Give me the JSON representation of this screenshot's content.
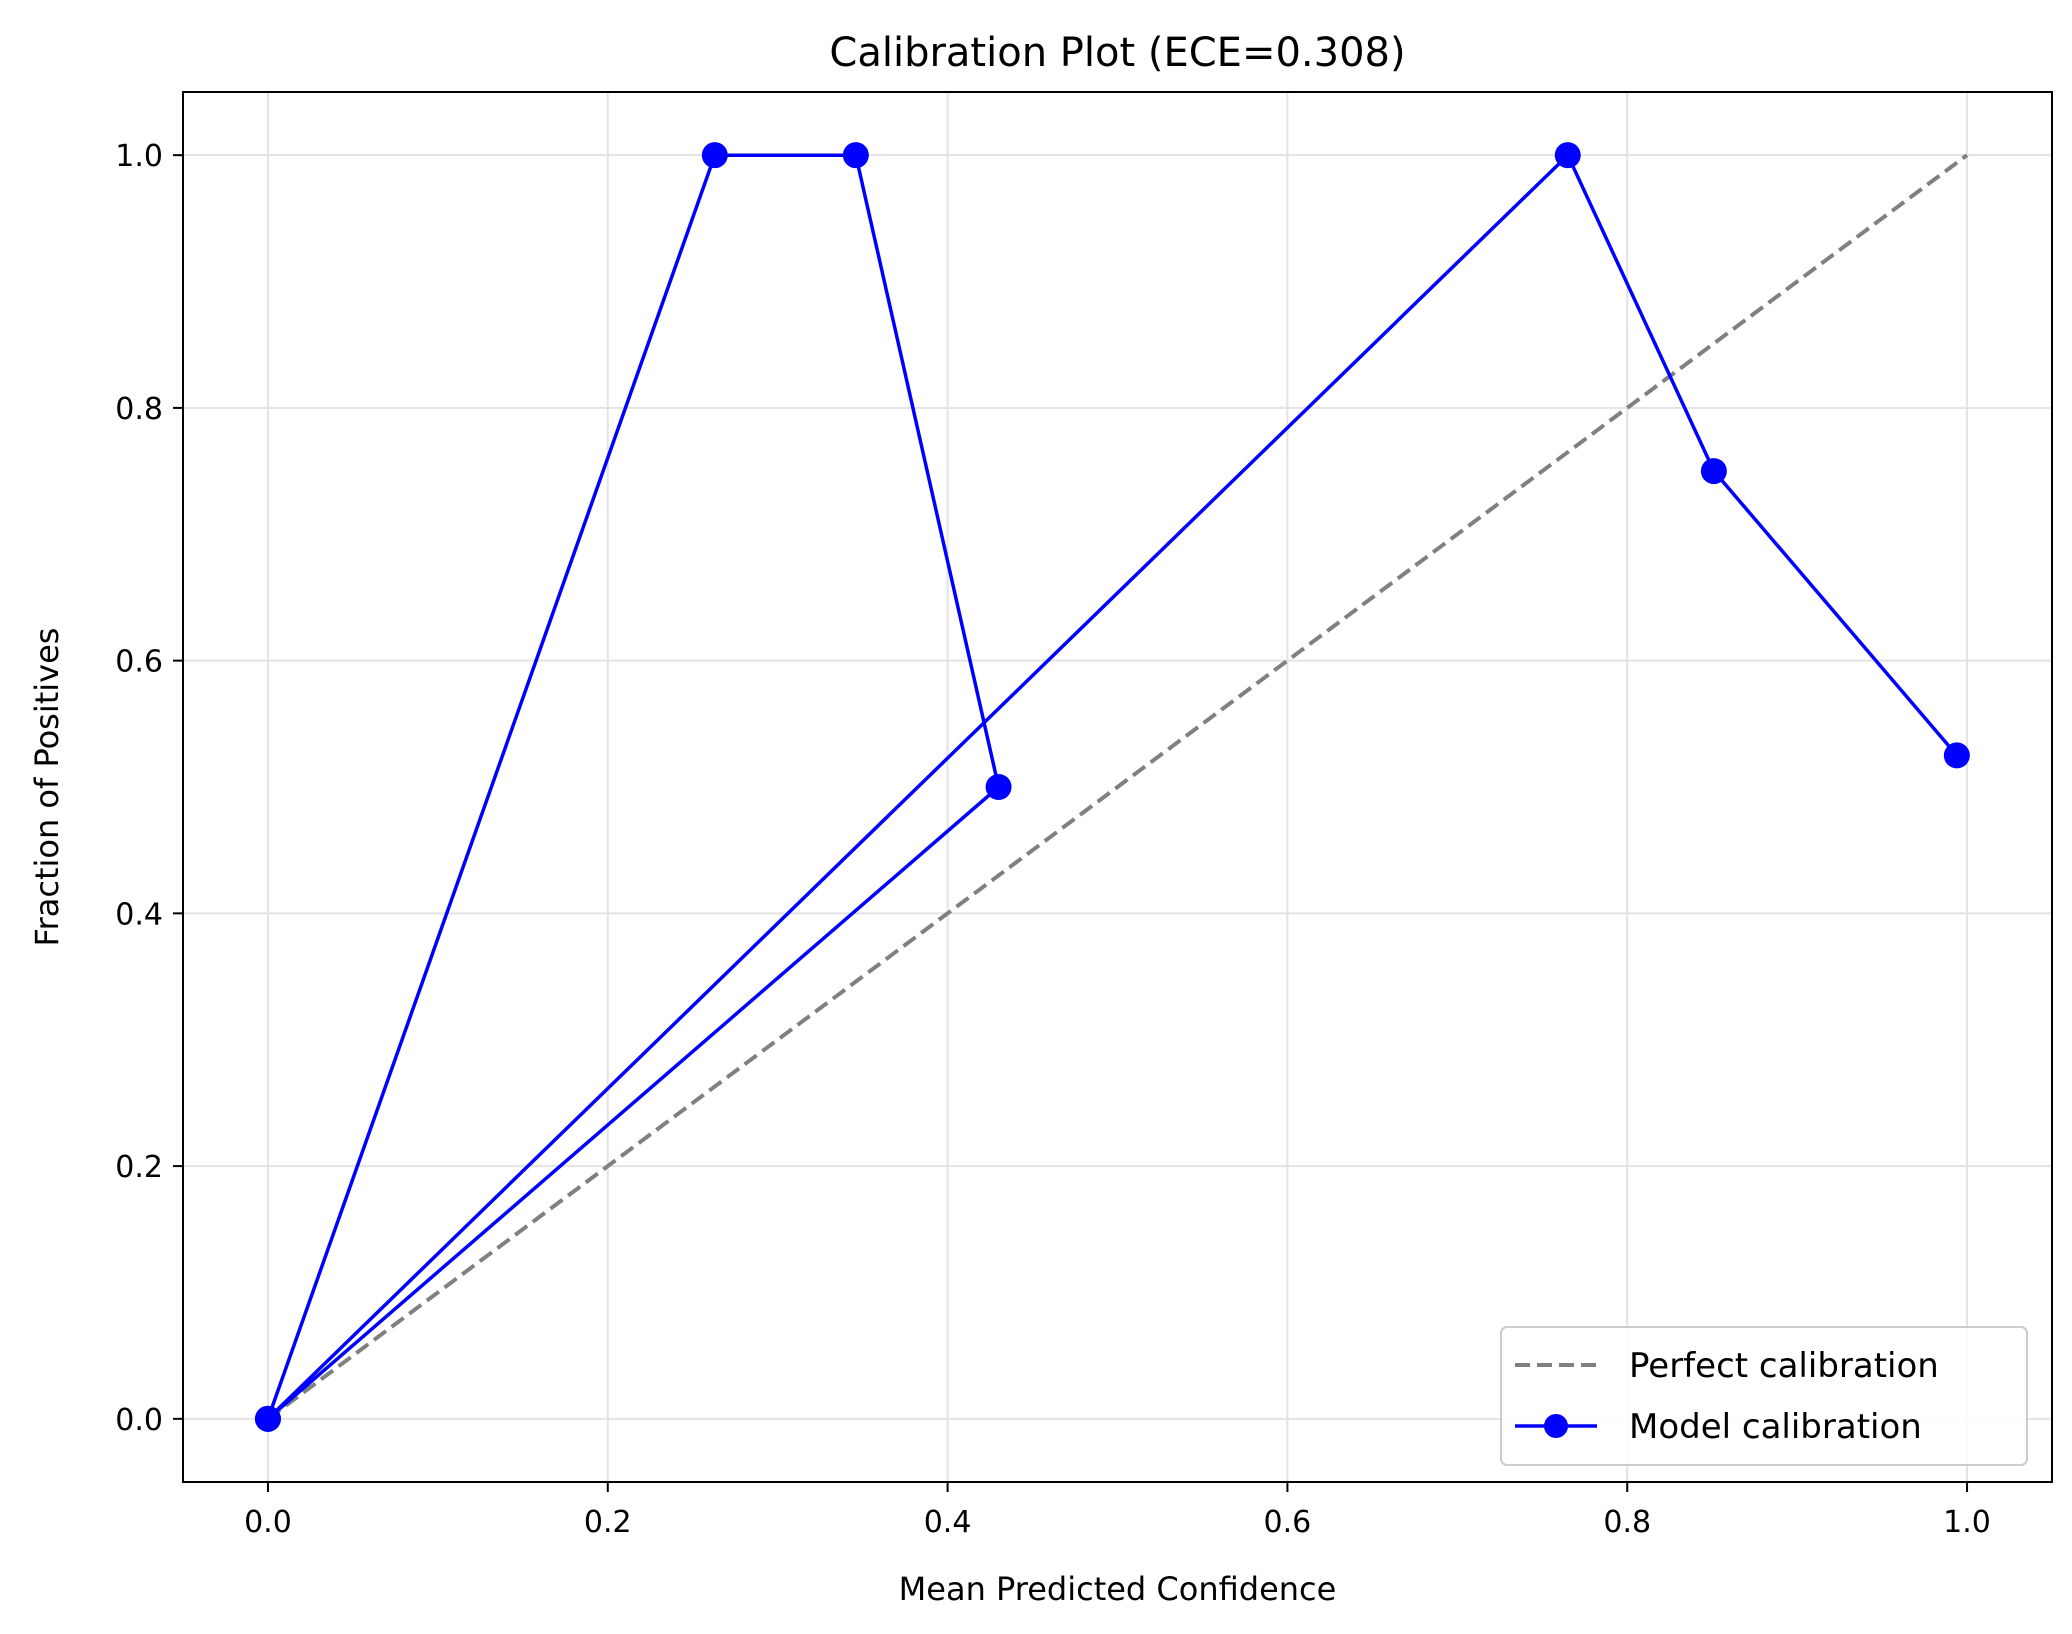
{
  "chart_data": {
    "type": "line",
    "title": "Calibration Plot (ECE=0.308)",
    "xlabel": "Mean Predicted Confidence",
    "ylabel": "Fraction of Positives",
    "xlim": [
      -0.05,
      1.05
    ],
    "ylim": [
      -0.05,
      1.05
    ],
    "xticks": [
      0.0,
      0.2,
      0.4,
      0.6,
      0.8,
      1.0
    ],
    "xtick_labels": [
      "0.0",
      "0.2",
      "0.4",
      "0.6",
      "0.8",
      "1.0"
    ],
    "yticks": [
      0.0,
      0.2,
      0.4,
      0.6,
      0.8,
      1.0
    ],
    "ytick_labels": [
      "0.0",
      "0.2",
      "0.4",
      "0.6",
      "0.8",
      "1.0"
    ],
    "grid": true,
    "legend_position": "lower-right",
    "series": [
      {
        "name": "Perfect calibration",
        "style": "dashed",
        "color": "#808080",
        "marker": "none",
        "x": [
          0,
          1
        ],
        "y": [
          0,
          1
        ]
      },
      {
        "name": "Model calibration",
        "style": "solid",
        "color": "#0000ff",
        "marker": "circle",
        "x": [
          0.0,
          0.263,
          0.346,
          0.43,
          0.0,
          0.765,
          0.851,
          0.994
        ],
        "y": [
          0.0,
          1.0,
          1.0,
          0.5,
          0.0,
          1.0,
          0.75,
          0.525
        ]
      }
    ]
  }
}
